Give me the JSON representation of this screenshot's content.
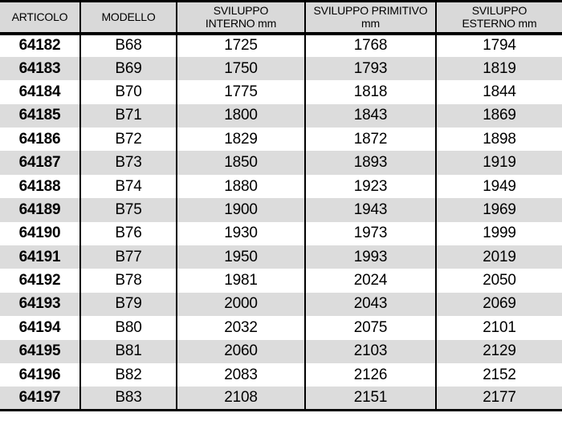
{
  "colors": {
    "header_bg": "#d9d9d9",
    "row_alt_bg": "#dcdcdc",
    "border": "#000000",
    "text": "#000000"
  },
  "table": {
    "columns": [
      {
        "key": "articolo",
        "label": "ARTICOLO"
      },
      {
        "key": "modello",
        "label": "MODELLO"
      },
      {
        "key": "sviluppo-interno",
        "label": "SVILUPPO\nINTERNO mm"
      },
      {
        "key": "sviluppo-primitivo",
        "label": "SVILUPPO PRIMITIVO\nmm"
      },
      {
        "key": "sviluppo-esterno",
        "label": "SVILUPPO\nESTERNO mm"
      }
    ],
    "rows": [
      [
        "64182",
        "B68",
        "1725",
        "1768",
        "1794"
      ],
      [
        "64183",
        "B69",
        "1750",
        "1793",
        "1819"
      ],
      [
        "64184",
        "B70",
        "1775",
        "1818",
        "1844"
      ],
      [
        "64185",
        "B71",
        "1800",
        "1843",
        "1869"
      ],
      [
        "64186",
        "B72",
        "1829",
        "1872",
        "1898"
      ],
      [
        "64187",
        "B73",
        "1850",
        "1893",
        "1919"
      ],
      [
        "64188",
        "B74",
        "1880",
        "1923",
        "1949"
      ],
      [
        "64189",
        "B75",
        "1900",
        "1943",
        "1969"
      ],
      [
        "64190",
        "B76",
        "1930",
        "1973",
        "1999"
      ],
      [
        "64191",
        "B77",
        "1950",
        "1993",
        "2019"
      ],
      [
        "64192",
        "B78",
        "1981",
        "2024",
        "2050"
      ],
      [
        "64193",
        "B79",
        "2000",
        "2043",
        "2069"
      ],
      [
        "64194",
        "B80",
        "2032",
        "2075",
        "2101"
      ],
      [
        "64195",
        "B81",
        "2060",
        "2103",
        "2129"
      ],
      [
        "64196",
        "B82",
        "2083",
        "2126",
        "2152"
      ],
      [
        "64197",
        "B83",
        "2108",
        "2151",
        "2177"
      ]
    ]
  }
}
